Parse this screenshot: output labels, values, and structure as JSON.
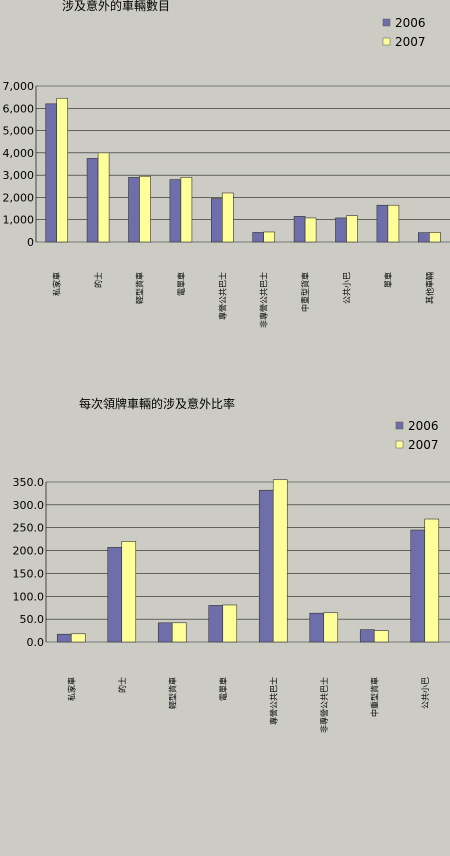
{
  "chart_data": [
    {
      "type": "bar",
      "title": "涉及意外的車輛數目",
      "categories": [
        "私家車",
        "的士",
        "輕型貨車",
        "電單車",
        "專營公共巴士",
        "非專營公共巴士",
        "中重型貨車",
        "公共小巴",
        "單車",
        "其他車輛"
      ],
      "series": [
        {
          "name": "2006",
          "values": [
            6200,
            3750,
            2900,
            2800,
            1950,
            430,
            1150,
            1080,
            1650,
            420
          ]
        },
        {
          "name": "2007",
          "values": [
            6450,
            4000,
            2950,
            2900,
            2200,
            450,
            1080,
            1180,
            1650,
            430
          ]
        }
      ],
      "yticks": [
        "0",
        "1,000",
        "2,000",
        "3,000",
        "4,000",
        "5,000",
        "6,000",
        "7,000"
      ],
      "ylim": [
        0,
        7000
      ],
      "grid": true,
      "legend": "top-right",
      "colors": [
        "#6e6eaa",
        "#ffff99"
      ]
    },
    {
      "type": "bar",
      "title": "每次領牌車輛的涉及意外比率",
      "categories": [
        "私家車",
        "的士",
        "輕型貨車",
        "電單車",
        "專營公共巴士",
        "非專營公共巴士",
        "中重型貨車",
        "公共小巴"
      ],
      "series": [
        {
          "name": "2006",
          "values": [
            17,
            207,
            42,
            80,
            332,
            63,
            27,
            245
          ]
        },
        {
          "name": "2007",
          "values": [
            18,
            220,
            42,
            81,
            355,
            64,
            25,
            269
          ]
        }
      ],
      "yticks": [
        "0.0",
        "50.0",
        "100.0",
        "150.0",
        "200.0",
        "250.0",
        "300.0",
        "350.0"
      ],
      "ylim": [
        0,
        350
      ],
      "grid": true,
      "legend": "top-right",
      "colors": [
        "#6e6eaa",
        "#ffff99"
      ]
    }
  ]
}
